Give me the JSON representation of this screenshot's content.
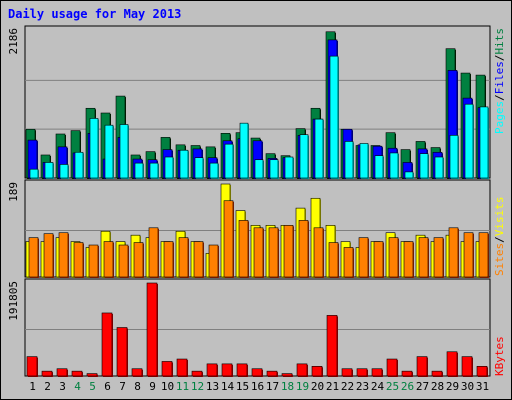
{
  "title": "Daily usage for May 2013",
  "colors": {
    "hits": "#008040",
    "files": "#0000ff",
    "pages": "#00ffff",
    "visits": "#ffff00",
    "sites": "#ff8000",
    "kbytes": "#ff0000",
    "weekend_day": "#008040",
    "weekday": "#000000"
  },
  "labels": {
    "pages": "Pages",
    "files": "Files",
    "hits": "Hits",
    "sites": "Sites",
    "visits": "Visits",
    "kbytes": "KBytes",
    "sep": "/"
  },
  "chart_data": {
    "type": "bar",
    "categories": [
      "1",
      "2",
      "3",
      "4",
      "5",
      "6",
      "7",
      "8",
      "9",
      "10",
      "11",
      "12",
      "13",
      "14",
      "15",
      "16",
      "17",
      "18",
      "19",
      "20",
      "21",
      "22",
      "23",
      "24",
      "25",
      "26",
      "27",
      "28",
      "29",
      "30",
      "31"
    ],
    "weekend_days": [
      "4",
      "5",
      "11",
      "12",
      "18",
      "19",
      "25",
      "26"
    ],
    "panels": [
      {
        "name": "hits-files-pages",
        "ymax_label": "2186",
        "ymax": 2186,
        "series": [
          {
            "name": "Hits",
            "values": [
              720,
              340,
              650,
              700,
              1030,
              960,
              1210,
              340,
              390,
              600,
              490,
              480,
              460,
              660,
              670,
              590,
              360,
              330,
              730,
              1030,
              2160,
              720,
              480,
              480,
              670,
              420,
              540,
              450,
              1910,
              1550,
              1520
            ]
          },
          {
            "name": "Files",
            "values": [
              560,
              230,
              460,
              370,
              660,
              280,
              600,
              280,
              270,
              420,
              410,
              430,
              300,
              550,
              580,
              550,
              290,
              300,
              630,
              870,
              2040,
              720,
              490,
              470,
              440,
              230,
              430,
              380,
              1590,
              1180,
              1040
            ]
          },
          {
            "name": "Pages",
            "values": [
              130,
              230,
              200,
              380,
              880,
              780,
              790,
              220,
              220,
              310,
              410,
              300,
              220,
              500,
              810,
              270,
              270,
              310,
              640,
              870,
              1800,
              540,
              510,
              330,
              370,
              90,
              360,
              310,
              630,
              1090,
              1050
            ]
          }
        ]
      },
      {
        "name": "sites-visits",
        "ymax_label": "189",
        "ymax": 189,
        "series": [
          {
            "name": "Visits",
            "values": [
              72,
              72,
              80,
              72,
              60,
              93,
              72,
              85,
              80,
              72,
              93,
              72,
              48,
              189,
              135,
              105,
              105,
              105,
              140,
              160,
              105,
              72,
              60,
              72,
              90,
              72,
              85,
              72,
              85,
              72,
              72
            ]
          },
          {
            "name": "Sites",
            "values": [
              80,
              88,
              90,
              70,
              65,
              72,
              65,
              70,
              100,
              72,
              80,
              72,
              65,
              155,
              115,
              100,
              100,
              105,
              115,
              100,
              70,
              60,
              80,
              72,
              80,
              72,
              80,
              80,
              100,
              90,
              90
            ]
          }
        ]
      },
      {
        "name": "kbytes",
        "ymax_label": "191805",
        "ymax": 191805,
        "series": [
          {
            "name": "KBytes",
            "values": [
              40000,
              10000,
              15000,
              10000,
              5000,
              130000,
              100000,
              15000,
              191805,
              30000,
              35000,
              10000,
              25000,
              25000,
              25000,
              15000,
              10000,
              5000,
              25000,
              20000,
              125000,
              15000,
              15000,
              15000,
              35000,
              10000,
              40000,
              10000,
              50000,
              40000,
              20000
            ]
          }
        ]
      }
    ]
  }
}
